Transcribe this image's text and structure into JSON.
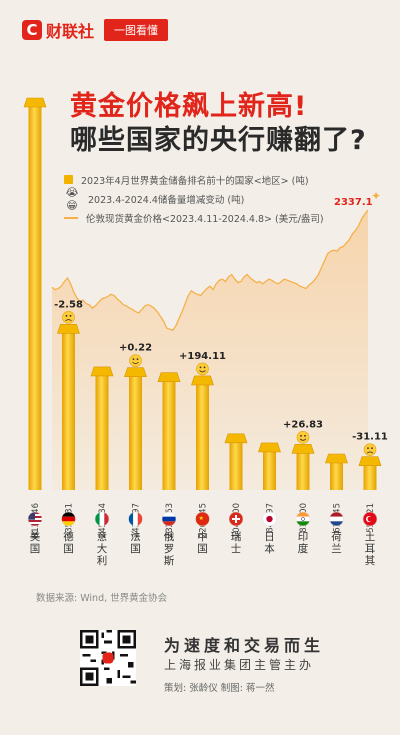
{
  "header": {
    "logo_mark": "C",
    "logo_text": "财联社",
    "badge": "一图看懂"
  },
  "title": {
    "line1": "黄金价格飙上新高!",
    "line2": "哪些国家的央行赚翻了?"
  },
  "legend": {
    "bars": "2023年4月世界黄金储备排名前十的国家<地区> (吨)",
    "change": "2023.4-2024.4储备量增减变动 (吨)",
    "price": "伦敦现货黄金价格<2023.4.11-2024.4.8> (美元/盎司)"
  },
  "colors": {
    "bar": "#f5b800",
    "bar_light": "#ffd94a",
    "accent": "#e1251b",
    "line": "#f6b04a",
    "area": "#f7d3a8"
  },
  "chart_data": {
    "type": "bar",
    "categories": [
      "美国",
      "德国",
      "意大利",
      "法国",
      "俄罗斯",
      "中国",
      "瑞士",
      "日本",
      "印度",
      "荷兰",
      "土耳其"
    ],
    "values": [
      8133.46,
      3352.31,
      2451.84,
      2436.97,
      2329.63,
      2262.45,
      1040.0,
      845.97,
      817.0,
      612.45,
      556.21
    ],
    "value_labels": [
      "8133.46",
      "3352.31",
      "2451.84",
      "2436.97",
      "2329.63",
      "2262.45",
      "1040.00",
      "845.97",
      "817.00",
      "612.45",
      "556.21"
    ],
    "changes": [
      {
        "country": "德国",
        "value": "-2.58"
      },
      {
        "country": "法国",
        "value": "+0.22"
      },
      {
        "country": "中国",
        "value": "+194.11"
      },
      {
        "country": "印度",
        "value": "+26.83"
      },
      {
        "country": "土耳其",
        "value": "-31.11"
      }
    ],
    "price_series": {
      "name": "伦敦现货黄金价格",
      "peak_label": "2337.1",
      "values": [
        2005,
        1995,
        2000,
        2010,
        2030,
        2045,
        2020,
        1985,
        1960,
        1945,
        1950,
        1935,
        1930,
        1915,
        1925,
        1940,
        1955,
        1960,
        1965,
        1975,
        1970,
        1955,
        1945,
        1930,
        1925,
        1915,
        1910,
        1900,
        1895,
        1910,
        1925,
        1930,
        1925,
        1915,
        1900,
        1880,
        1860,
        1830,
        1825,
        1820,
        1840,
        1870,
        1900,
        1935,
        1970,
        1990,
        1980,
        1975,
        1970,
        1985,
        2000,
        2010,
        1995,
        2020,
        2035,
        2040,
        2030,
        2050,
        2060,
        2040,
        2025,
        2030,
        2050,
        2060,
        2045,
        2035,
        2025,
        2030,
        2020,
        2030,
        2040,
        2035,
        2025,
        2020,
        2030,
        2040,
        2035,
        2030,
        2025,
        2020,
        2010,
        2005,
        2000,
        2015,
        2025,
        2040,
        2060,
        2090,
        2120,
        2150,
        2160,
        2165,
        2160,
        2175,
        2180,
        2195,
        2210,
        2235,
        2250,
        2270,
        2300,
        2320,
        2337.1
      ]
    }
  },
  "flags": [
    "us",
    "de",
    "it",
    "fr",
    "ru",
    "cn",
    "ch",
    "jp",
    "in",
    "nl",
    "tr"
  ],
  "source": "数据来源: Wind, 世界黄金协会",
  "footer": {
    "slogan": "为速度和交易而生",
    "sub": "上海报业集团主管主办",
    "credits": "策划: 张龄仪    制图: 蒋一然"
  }
}
